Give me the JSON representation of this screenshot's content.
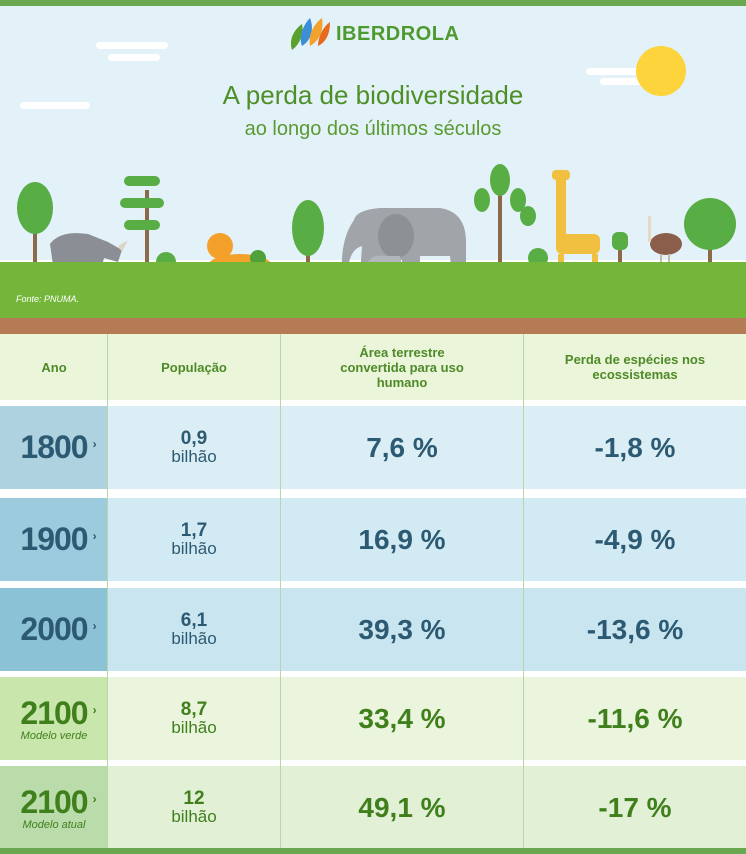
{
  "brand": {
    "name": "IBERDROLA"
  },
  "title": "A perda de biodiversidade",
  "subtitle": "ao longo dos últimos séculos",
  "source": "Fonte: PNUMA.",
  "table": {
    "headers": {
      "year": "Ano",
      "population": "População",
      "land": "Área terrestre convertida para uso humano",
      "species": "Perda de espécies nos ecossistemas"
    },
    "rows": [
      {
        "year": "1800",
        "model": "",
        "pop_value": "0,9",
        "pop_unit": "bilhão",
        "land": "7,6 %",
        "species": "-1,8 %",
        "theme": "blue"
      },
      {
        "year": "1900",
        "model": "",
        "pop_value": "1,7",
        "pop_unit": "bilhão",
        "land": "16,9 %",
        "species": "-4,9 %",
        "theme": "blue"
      },
      {
        "year": "2000",
        "model": "",
        "pop_value": "6,1",
        "pop_unit": "bilhão",
        "land": "39,3 %",
        "species": "-13,6 %",
        "theme": "blue"
      },
      {
        "year": "2100",
        "model": "Modelo verde",
        "pop_value": "8,7",
        "pop_unit": "bilhão",
        "land": "33,4 %",
        "species": "-11,6 %",
        "theme": "green"
      },
      {
        "year": "2100",
        "model": "Modelo atual",
        "pop_value": "12",
        "pop_unit": "bilhão",
        "land": "49,1 %",
        "species": "-17 %",
        "theme": "green"
      }
    ]
  },
  "colors": {
    "row_year_bg": [
      "#aed2e0",
      "#9ccbdd",
      "#8bc2d6",
      "#c9e6ad",
      "#b9dcaa"
    ],
    "row_bg": [
      "#dbeef5",
      "#d2eaf3",
      "#c9e5f0",
      "#ebf5dd",
      "#e2f0d6"
    ]
  }
}
